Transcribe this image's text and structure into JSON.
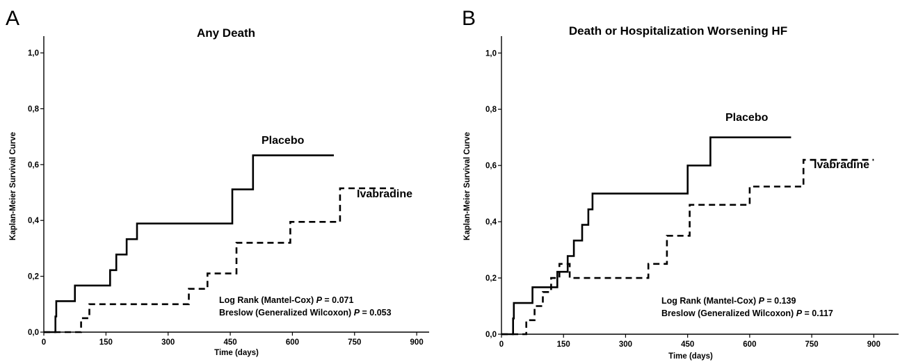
{
  "panels": [
    {
      "letter": "A",
      "stats": {
        "line1_text": "Log Rank (Mantel-Cox) ",
        "line1_p": "P",
        "line1_value": " = 0.071",
        "line2_text": "Breslow (Generalized Wilcoxon) ",
        "line2_p": "P",
        "line2_value": " = 0.053"
      }
    },
    {
      "letter": "B",
      "stats": {
        "line1_text": "Log Rank (Mantel-Cox) ",
        "line1_p": "P",
        "line1_value": " = 0.139",
        "line2_text": "Breslow (Generalized Wilcoxon) ",
        "line2_p": "P",
        "line2_value": " = 0.117"
      }
    }
  ],
  "chart_data": [
    {
      "type": "line",
      "step": true,
      "title": "Any Death",
      "xlabel": "Time (days)",
      "ylabel": "Kaplan-Meier Survival Curve",
      "xlim": [
        0,
        930
      ],
      "ylim": [
        0,
        1.06
      ],
      "xticks": [
        0,
        150,
        300,
        450,
        600,
        750,
        900
      ],
      "xtick_labels": [
        "0",
        "150",
        "300",
        "450",
        "600",
        "750",
        "900"
      ],
      "yticks": [
        0,
        0.2,
        0.4,
        0.6,
        0.8,
        1.0
      ],
      "ytick_labels": [
        "0,0",
        "0,2",
        "0,4",
        "0,6",
        "0,8",
        "1,0"
      ],
      "grid": false,
      "series": [
        {
          "name": "Placebo",
          "style": "solid",
          "x": [
            0,
            28,
            30,
            75,
            160,
            175,
            200,
            225,
            455,
            505,
            700
          ],
          "y": [
            0,
            0.056,
            0.111,
            0.167,
            0.222,
            0.278,
            0.333,
            0.389,
            0.511,
            0.633,
            0.633
          ]
        },
        {
          "name": "Ivabradine",
          "style": "dashed",
          "x": [
            0,
            90,
            110,
            130,
            350,
            395,
            465,
            595,
            715,
            845
          ],
          "y": [
            0,
            0.05,
            0.1,
            0.1,
            0.155,
            0.21,
            0.32,
            0.395,
            0.515,
            0.515
          ]
        }
      ]
    },
    {
      "type": "line",
      "step": true,
      "title": "Death or Hospitalization Worsening HF",
      "xlabel": "Time (days)",
      "ylabel": "Kaplan-Meier Survival Curve",
      "xlim": [
        0,
        960
      ],
      "ylim": [
        0,
        1.06
      ],
      "xticks": [
        0,
        150,
        300,
        450,
        600,
        750,
        900
      ],
      "xtick_labels": [
        "0",
        "150",
        "300",
        "450",
        "600",
        "750",
        "900"
      ],
      "yticks": [
        0,
        0.2,
        0.4,
        0.6,
        0.8,
        1.0
      ],
      "ytick_labels": [
        "0,0",
        "0,2",
        "0,4",
        "0,6",
        "0,8",
        "1,0"
      ],
      "grid": false,
      "series": [
        {
          "name": "Placebo",
          "style": "solid",
          "x": [
            0,
            28,
            30,
            75,
            135,
            160,
            175,
            195,
            210,
            220,
            230,
            450,
            505,
            700
          ],
          "y": [
            0,
            0.056,
            0.111,
            0.167,
            0.222,
            0.278,
            0.333,
            0.389,
            0.444,
            0.5,
            0.5,
            0.6,
            0.7,
            0.7
          ]
        },
        {
          "name": "Ivabradine",
          "style": "dashed",
          "x": [
            0,
            60,
            80,
            100,
            120,
            140,
            165,
            355,
            400,
            455,
            600,
            730,
            900
          ],
          "y": [
            0,
            0.05,
            0.1,
            0.15,
            0.2,
            0.25,
            0.2,
            0.25,
            0.35,
            0.46,
            0.525,
            0.62,
            0.62
          ]
        }
      ]
    }
  ]
}
